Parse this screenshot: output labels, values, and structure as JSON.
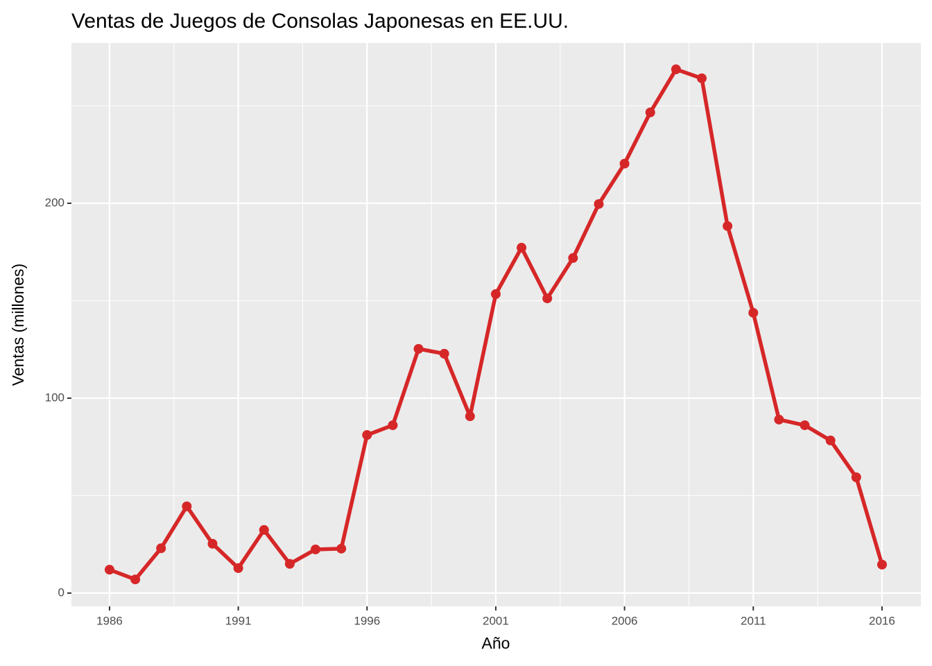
{
  "chart_data": {
    "type": "line",
    "title": "Ventas de Juegos de Consolas Japonesas en EE.UU.",
    "x_label": "Año",
    "y_label": "Ventas (millones)",
    "x": [
      1986,
      1987,
      1988,
      1989,
      1990,
      1991,
      1992,
      1993,
      1994,
      1995,
      1996,
      1997,
      1998,
      1999,
      2000,
      2001,
      2002,
      2003,
      2004,
      2005,
      2006,
      2007,
      2008,
      2009,
      2010,
      2011,
      2012,
      2013,
      2014,
      2015,
      2016
    ],
    "series": [
      {
        "name": "Ventas",
        "color": "#d62728",
        "values": [
          12,
          7,
          23,
          44.5,
          25.3,
          12.8,
          32.4,
          15,
          22.4,
          22.8,
          81.1,
          86.1,
          125.3,
          122.8,
          90.7,
          153.4,
          177.2,
          151.2,
          171.9,
          199.6,
          220.3,
          246.6,
          268.7,
          264.1,
          188.3,
          143.8,
          89,
          86.1,
          78.3,
          59.4,
          14.6
        ]
      }
    ],
    "xlim": [
      1984.52,
      2017.51
    ],
    "xticks": [
      1986,
      1991,
      1996,
      2001,
      2006,
      2011,
      2016
    ],
    "ylim": [
      -6.8,
      282.2
    ],
    "yticks": [
      0,
      100,
      200
    ],
    "grid": true
  }
}
